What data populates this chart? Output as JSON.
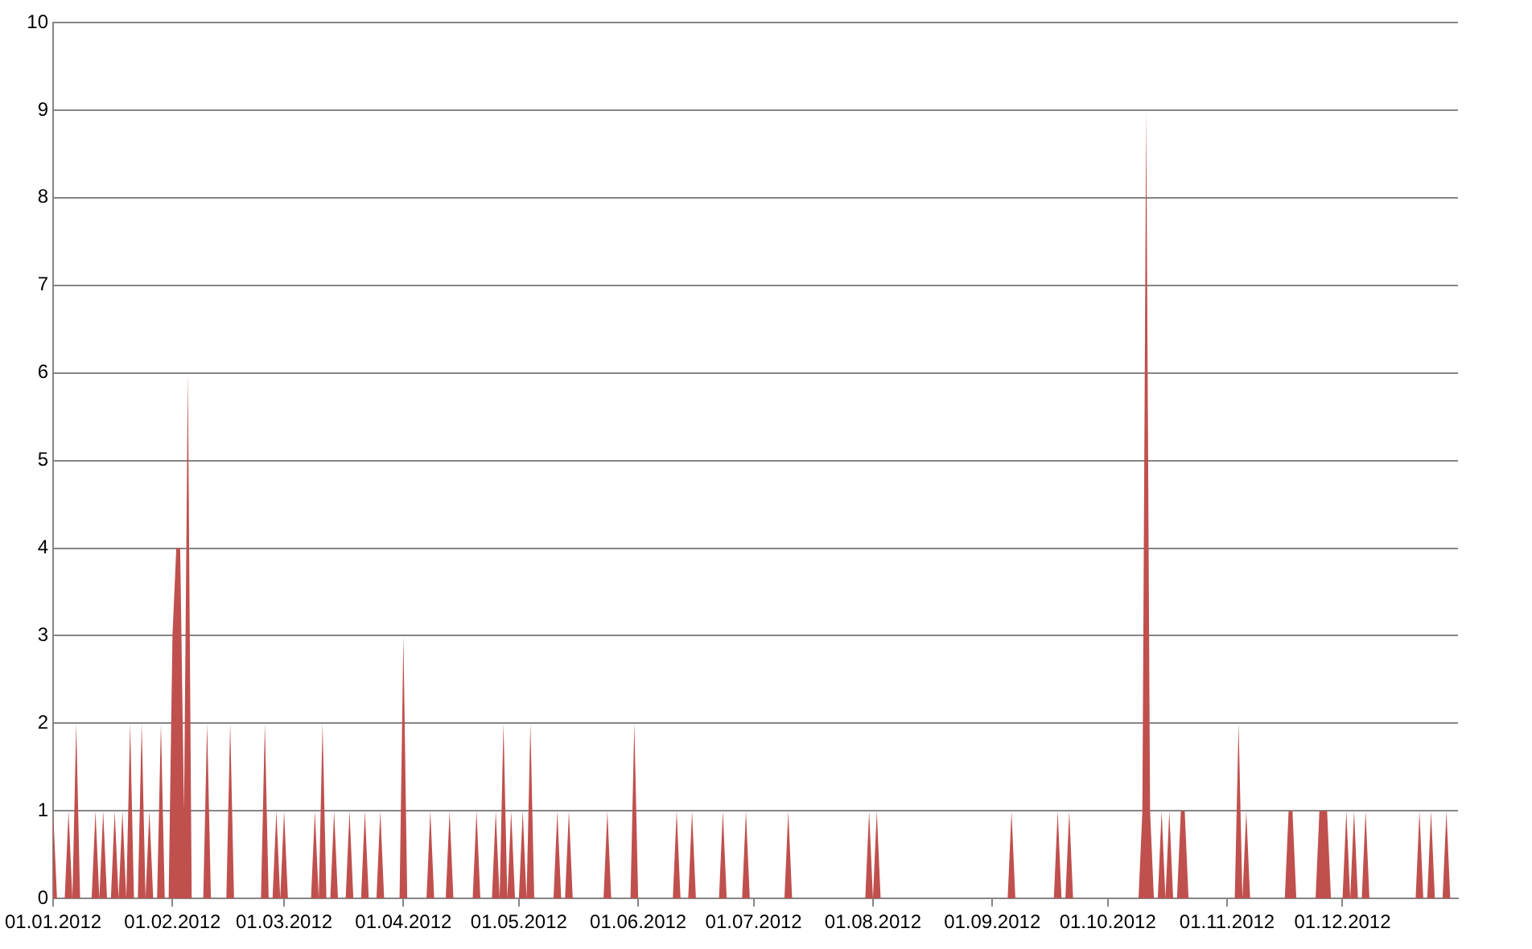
{
  "chart_data": {
    "type": "area",
    "x": [
      "2012-01-01",
      "2012-01-02",
      "2012-01-04",
      "2012-01-05",
      "2012-01-06",
      "2012-01-07",
      "2012-01-08",
      "2012-01-11",
      "2012-01-12",
      "2012-01-13",
      "2012-01-14",
      "2012-01-15",
      "2012-01-16",
      "2012-01-17",
      "2012-01-18",
      "2012-01-19",
      "2012-01-20",
      "2012-01-21",
      "2012-01-22",
      "2012-01-23",
      "2012-01-24",
      "2012-01-25",
      "2012-01-26",
      "2012-01-27",
      "2012-01-28",
      "2012-01-29",
      "2012-01-30",
      "2012-01-31",
      "2012-02-01",
      "2012-02-02",
      "2012-02-03",
      "2012-02-04",
      "2012-02-05",
      "2012-02-06",
      "2012-02-09",
      "2012-02-10",
      "2012-02-11",
      "2012-02-15",
      "2012-02-16",
      "2012-02-17",
      "2012-02-24",
      "2012-02-25",
      "2012-02-26",
      "2012-02-27",
      "2012-02-28",
      "2012-02-29",
      "2012-03-01",
      "2012-03-02",
      "2012-03-08",
      "2012-03-09",
      "2012-03-10",
      "2012-03-11",
      "2012-03-12",
      "2012-03-13",
      "2012-03-14",
      "2012-03-15",
      "2012-03-17",
      "2012-03-18",
      "2012-03-19",
      "2012-03-21",
      "2012-03-22",
      "2012-03-23",
      "2012-03-25",
      "2012-03-26",
      "2012-03-27",
      "2012-03-31",
      "2012-04-01",
      "2012-04-02",
      "2012-04-07",
      "2012-04-08",
      "2012-04-09",
      "2012-04-12",
      "2012-04-13",
      "2012-04-14",
      "2012-04-19",
      "2012-04-20",
      "2012-04-21",
      "2012-04-24",
      "2012-04-25",
      "2012-04-26",
      "2012-04-27",
      "2012-04-28",
      "2012-04-29",
      "2012-04-30",
      "2012-05-01",
      "2012-05-02",
      "2012-05-03",
      "2012-05-04",
      "2012-05-05",
      "2012-05-10",
      "2012-05-11",
      "2012-05-12",
      "2012-05-13",
      "2012-05-14",
      "2012-05-15",
      "2012-05-23",
      "2012-05-24",
      "2012-05-25",
      "2012-05-30",
      "2012-05-31",
      "2012-06-01",
      "2012-06-10",
      "2012-06-11",
      "2012-06-12",
      "2012-06-14",
      "2012-06-15",
      "2012-06-16",
      "2012-06-22",
      "2012-06-23",
      "2012-06-24",
      "2012-06-28",
      "2012-06-29",
      "2012-06-30",
      "2012-07-09",
      "2012-07-10",
      "2012-07-11",
      "2012-07-30",
      "2012-07-31",
      "2012-08-01",
      "2012-08-02",
      "2012-08-03",
      "2012-09-05",
      "2012-09-06",
      "2012-09-07",
      "2012-09-17",
      "2012-09-18",
      "2012-09-19",
      "2012-09-20",
      "2012-09-21",
      "2012-09-22",
      "2012-10-09",
      "2012-10-10",
      "2012-10-11",
      "2012-10-12",
      "2012-10-13",
      "2012-10-14",
      "2012-10-15",
      "2012-10-16",
      "2012-10-17",
      "2012-10-18",
      "2012-10-19",
      "2012-10-20",
      "2012-10-21",
      "2012-10-22",
      "2012-11-03",
      "2012-11-04",
      "2012-11-05",
      "2012-11-06",
      "2012-11-07",
      "2012-11-16",
      "2012-11-17",
      "2012-11-18",
      "2012-11-19",
      "2012-11-24",
      "2012-11-25",
      "2012-11-26",
      "2012-11-27",
      "2012-11-28",
      "2012-12-01",
      "2012-12-02",
      "2012-12-03",
      "2012-12-04",
      "2012-12-05",
      "2012-12-06",
      "2012-12-07",
      "2012-12-08",
      "2012-12-20",
      "2012-12-21",
      "2012-12-22",
      "2012-12-23",
      "2012-12-24",
      "2012-12-25",
      "2012-12-27",
      "2012-12-28",
      "2012-12-29",
      "2012-12-31"
    ],
    "series": [
      {
        "color": "#c0504d",
        "values": [
          1,
          0,
          0,
          1,
          0,
          2,
          0,
          0,
          1,
          0,
          1,
          0,
          0,
          1,
          0,
          1,
          0,
          2,
          0,
          0,
          2,
          0,
          1,
          0,
          0,
          2,
          0,
          0,
          3,
          4,
          4,
          1,
          6,
          0,
          0,
          2,
          0,
          0,
          2,
          0,
          0,
          2,
          0,
          0,
          1,
          0,
          1,
          0,
          0,
          1,
          0,
          2,
          0,
          0,
          1,
          0,
          0,
          1,
          0,
          0,
          1,
          0,
          0,
          1,
          0,
          0,
          3,
          0,
          0,
          1,
          0,
          0,
          1,
          0,
          0,
          1,
          0,
          0,
          1,
          0,
          2,
          0,
          1,
          0,
          0,
          1,
          0,
          2,
          0,
          0,
          1,
          0,
          0,
          1,
          0,
          0,
          1,
          0,
          0,
          2,
          0,
          0,
          1,
          0,
          0,
          1,
          0,
          0,
          1,
          0,
          0,
          1,
          0,
          0,
          1,
          0,
          0,
          1,
          0,
          1,
          0,
          0,
          1,
          0,
          0,
          1,
          0,
          0,
          1,
          0,
          0,
          1,
          9,
          1,
          0,
          0,
          1,
          0,
          1,
          0,
          0,
          1,
          1,
          0,
          0,
          2,
          0,
          1,
          0,
          0,
          1,
          1,
          0,
          0,
          1,
          1,
          1,
          0,
          0,
          1,
          0,
          1,
          0,
          0,
          1,
          0,
          0,
          1,
          0,
          0,
          1,
          0,
          0,
          1,
          0,
          0
        ]
      }
    ],
    "xlim": [
      "2012-01-01",
      "2012-12-31"
    ],
    "xticks": [
      {
        "value": "2012-01-01",
        "label": "01.01.2012"
      },
      {
        "value": "2012-02-01",
        "label": "01.02.2012"
      },
      {
        "value": "2012-03-01",
        "label": "01.03.2012"
      },
      {
        "value": "2012-04-01",
        "label": "01.04.2012"
      },
      {
        "value": "2012-05-01",
        "label": "01.05.2012"
      },
      {
        "value": "2012-06-01",
        "label": "01.06.2012"
      },
      {
        "value": "2012-07-01",
        "label": "01.07.2012"
      },
      {
        "value": "2012-08-01",
        "label": "01.08.2012"
      },
      {
        "value": "2012-09-01",
        "label": "01.09.2012"
      },
      {
        "value": "2012-10-01",
        "label": "01.10.2012"
      },
      {
        "value": "2012-11-01",
        "label": "01.11.2012"
      },
      {
        "value": "2012-12-01",
        "label": "01.12.2012"
      }
    ],
    "ylim": [
      0,
      10
    ],
    "yticks": [
      0,
      1,
      2,
      3,
      4,
      5,
      6,
      7,
      8,
      9,
      10
    ],
    "grid": "y",
    "legend": false,
    "marker": "none"
  }
}
